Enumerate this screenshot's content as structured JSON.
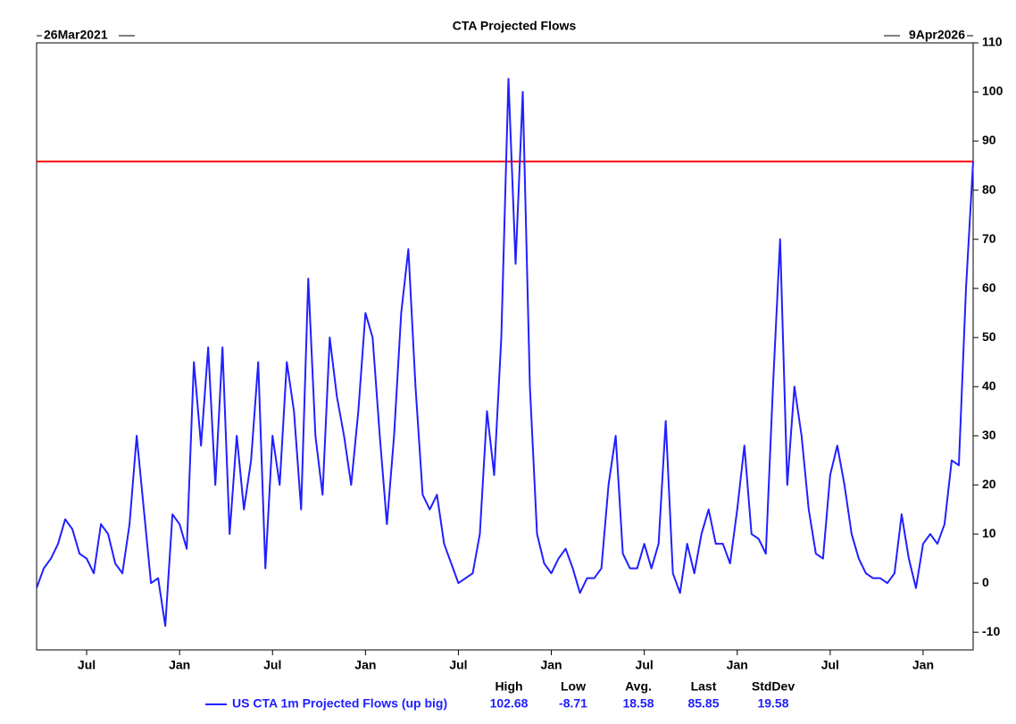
{
  "chart_data": {
    "type": "line",
    "title": "CTA Projected Flows",
    "start_label": "26Mar2021",
    "end_label": "9Apr2026",
    "xlim": [
      0,
      131
    ],
    "xticks": [
      {
        "value": 7,
        "label": "Jul"
      },
      {
        "value": 20,
        "label": "Jan"
      },
      {
        "value": 33,
        "label": "Jul"
      },
      {
        "value": 46,
        "label": "Jan"
      },
      {
        "value": 59,
        "label": "Jul"
      },
      {
        "value": 72,
        "label": "Jan"
      },
      {
        "value": 85,
        "label": "Jul"
      },
      {
        "value": 98,
        "label": "Jan"
      },
      {
        "value": 111,
        "label": "Jul"
      },
      {
        "value": 124,
        "label": "Jan"
      }
    ],
    "ylim": [
      -13.6,
      110
    ],
    "yticks": [
      -10,
      0,
      10,
      20,
      30,
      40,
      50,
      60,
      70,
      80,
      90,
      100,
      110
    ],
    "hline": {
      "value": 85.85,
      "color": "#ff0000"
    },
    "series": [
      {
        "name": "US CTA 1m Projected Flows (up big)",
        "color": "#2020ff",
        "values": [
          -1,
          3,
          5,
          8,
          13,
          11,
          6,
          5,
          2,
          12,
          10,
          4,
          2,
          12,
          30,
          15,
          0,
          1,
          -8.71,
          14,
          12,
          7,
          45,
          28,
          48,
          20,
          48,
          10,
          30,
          15,
          25,
          45,
          3,
          30,
          20,
          45,
          35,
          15,
          62,
          30,
          18,
          50,
          38,
          30,
          20,
          35,
          55,
          50,
          30,
          12,
          30,
          55,
          68,
          40,
          18,
          15,
          18,
          8,
          4,
          0,
          1,
          2,
          10,
          35,
          22,
          50,
          102.68,
          65,
          100,
          40,
          10,
          4,
          2,
          5,
          7,
          3,
          -2,
          1,
          1,
          3,
          20,
          30,
          6,
          3,
          3,
          8,
          3,
          8,
          33,
          2,
          -2,
          8,
          2,
          10,
          15,
          8,
          8,
          4,
          15,
          28,
          10,
          9,
          6,
          40,
          70,
          20,
          40,
          30,
          15,
          6,
          5,
          22,
          28,
          20,
          10,
          5,
          2,
          1,
          1,
          0,
          2,
          14,
          5,
          -1,
          8,
          10,
          8,
          12,
          25,
          24,
          60,
          85.85
        ]
      }
    ],
    "stats": {
      "headers": [
        "High",
        "Low",
        "Avg.",
        "Last",
        "StdDev"
      ],
      "values": [
        102.68,
        -8.71,
        18.58,
        85.85,
        19.58
      ]
    }
  }
}
